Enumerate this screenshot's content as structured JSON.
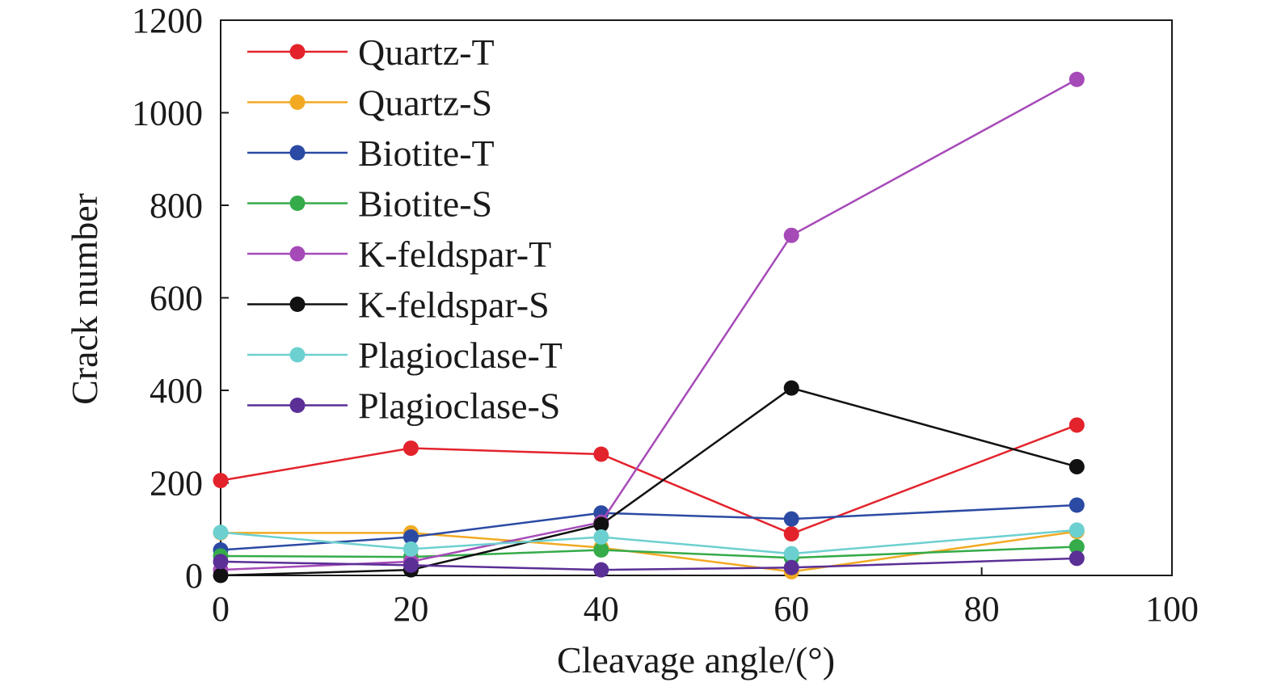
{
  "chart_data": {
    "type": "line",
    "xlabel": "Cleavage angle/(°)",
    "ylabel": "Crack number",
    "xlim": [
      0,
      100
    ],
    "ylim": [
      0,
      1200
    ],
    "xticks": [
      "0",
      "20",
      "40",
      "60",
      "80",
      "100"
    ],
    "yticks": [
      "0",
      "200",
      "400",
      "600",
      "800",
      "1000",
      "1200"
    ],
    "x": [
      0,
      20,
      40,
      60,
      90
    ],
    "grid": false,
    "legend_position": "top-left",
    "series": [
      {
        "name": "Quartz-T",
        "color": "#e3232c",
        "values": [
          205,
          275,
          262,
          90,
          325
        ]
      },
      {
        "name": "Quartz-S",
        "color": "#f2aa22",
        "values": [
          92,
          92,
          60,
          8,
          95
        ]
      },
      {
        "name": "Biotite-T",
        "color": "#2b4aa3",
        "values": [
          55,
          83,
          135,
          122,
          152
        ]
      },
      {
        "name": "Biotite-S",
        "color": "#35ab4a",
        "values": [
          42,
          40,
          55,
          38,
          62
        ]
      },
      {
        "name": "K-feldspar-T",
        "color": "#a64ab8",
        "values": [
          12,
          30,
          115,
          735,
          1072
        ]
      },
      {
        "name": "K-feldspar-S",
        "color": "#111111",
        "values": [
          0,
          12,
          110,
          405,
          235
        ]
      },
      {
        "name": " Plagioclase-T",
        "color": "#6dd0d0",
        "values": [
          93,
          57,
          83,
          47,
          98
        ]
      },
      {
        "name": " Plagioclase-S",
        "color": "#5a2f96",
        "values": [
          30,
          22,
          12,
          17,
          37
        ]
      }
    ]
  }
}
